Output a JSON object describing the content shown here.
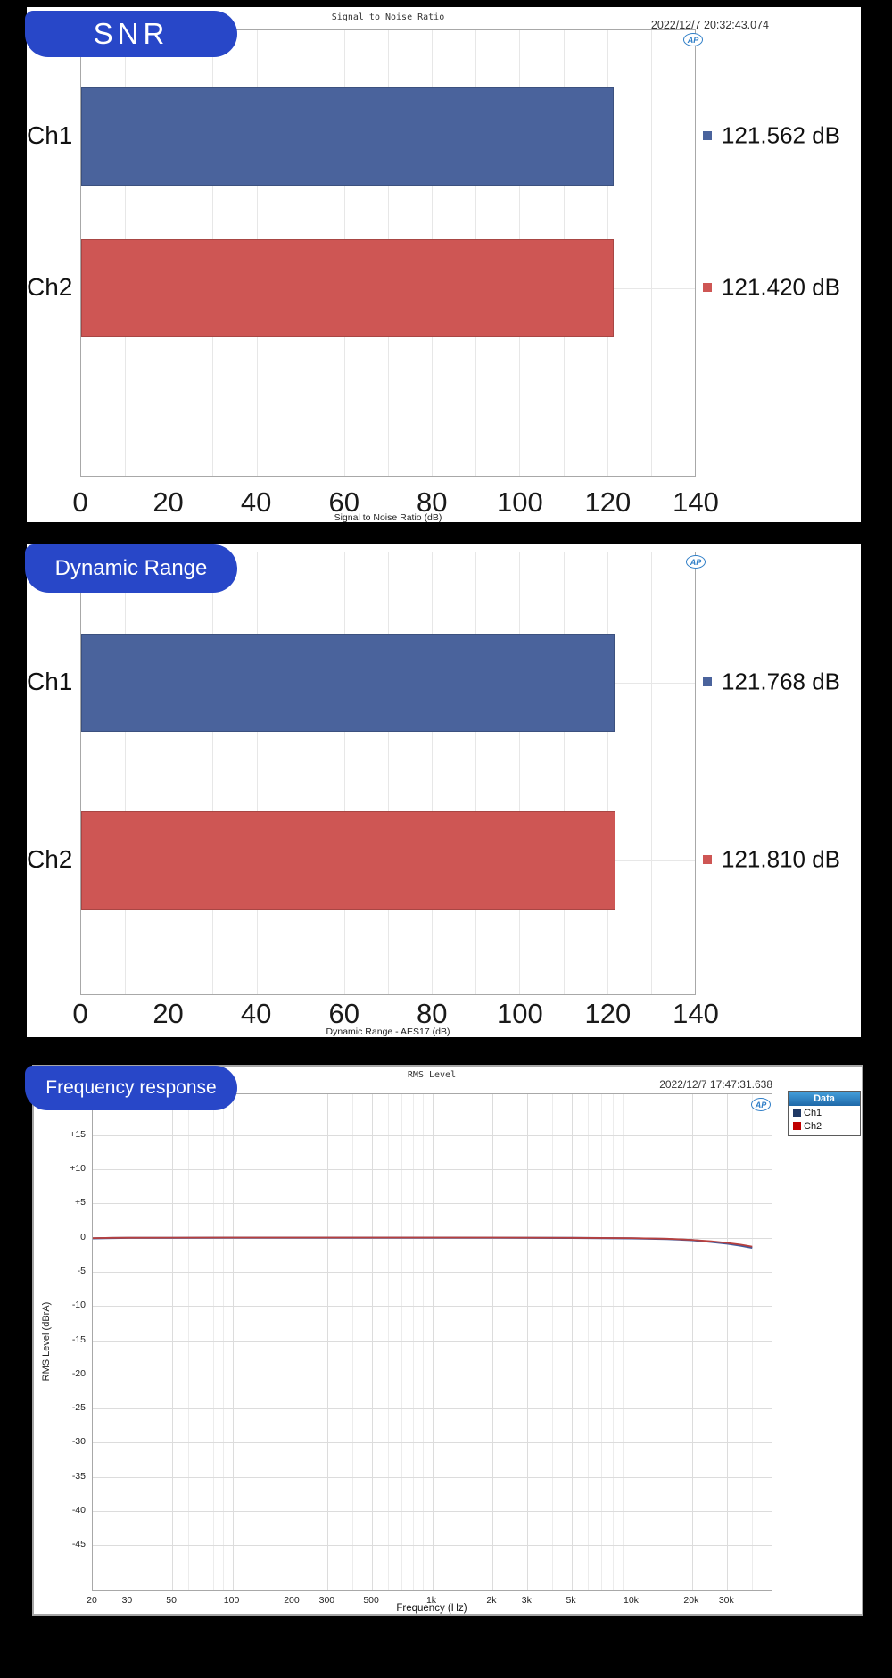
{
  "page": {
    "background": "#000000"
  },
  "colors": {
    "badge_blue": "#2847C8",
    "bar_ch1": "#4A639C",
    "bar_ch2": "#CE5654",
    "line_ch1": "#41599B",
    "line_ch2": "#B8403E",
    "legend_ch1": "#1F3864",
    "legend_ch2": "#C00000",
    "ap_logo_blue": "#2F7EC7",
    "grid_minor": "#ECECEC",
    "grid_major": "#DCDCDC",
    "grid_bar": "#E7E7E7"
  },
  "chart_data": [
    {
      "type": "bar",
      "orientation": "horizontal",
      "badge": "SNR",
      "title": "Signal to Noise Ratio",
      "timestamp": "2022/12/7 20:32:43.074",
      "logo": "AP",
      "xlabel": "Signal to Noise Ratio (dB)",
      "xlim": [
        0,
        140
      ],
      "x_ticks": [
        0,
        20,
        40,
        60,
        80,
        100,
        120,
        140
      ],
      "categories": [
        "Ch1",
        "Ch2"
      ],
      "values": [
        121.562,
        121.42
      ],
      "value_labels": [
        "121.562 dB",
        "121.420 dB"
      ],
      "bar_colors": [
        "#4A639C",
        "#CE5654"
      ],
      "grid": true
    },
    {
      "type": "bar",
      "orientation": "horizontal",
      "badge": "Dynamic Range",
      "title": "",
      "timestamp": "",
      "logo": "AP",
      "xlabel": "Dynamic Range - AES17 (dB)",
      "xlim": [
        0,
        140
      ],
      "x_ticks": [
        0,
        20,
        40,
        60,
        80,
        100,
        120,
        140
      ],
      "categories": [
        "Ch1",
        "Ch2"
      ],
      "values": [
        121.768,
        121.81
      ],
      "value_labels": [
        "121.768 dB",
        "121.810 dB"
      ],
      "bar_colors": [
        "#4A639C",
        "#CE5654"
      ],
      "grid": true
    },
    {
      "type": "line",
      "badge": "Frequency response",
      "title": "RMS Level",
      "timestamp": "2022/12/7 17:47:31.638",
      "logo": "AP",
      "xlabel": "Frequency (Hz)",
      "ylabel": "RMS Level (dBrA)",
      "x_scale": "log",
      "xlim": [
        20,
        50000
      ],
      "ylim": [
        -51.5,
        21
      ],
      "x_ticks": [
        {
          "f": 20,
          "label": "20"
        },
        {
          "f": 30,
          "label": "30"
        },
        {
          "f": 50,
          "label": "50"
        },
        {
          "f": 100,
          "label": "100"
        },
        {
          "f": 200,
          "label": "200"
        },
        {
          "f": 300,
          "label": "300"
        },
        {
          "f": 500,
          "label": "500"
        },
        {
          "f": 1000,
          "label": "1k"
        },
        {
          "f": 2000,
          "label": "2k"
        },
        {
          "f": 3000,
          "label": "3k"
        },
        {
          "f": 5000,
          "label": "5k"
        },
        {
          "f": 10000,
          "label": "10k"
        },
        {
          "f": 20000,
          "label": "20k"
        },
        {
          "f": 30000,
          "label": "30k"
        }
      ],
      "y_ticks": [
        {
          "v": 15,
          "label": "+15"
        },
        {
          "v": 10,
          "label": "+10"
        },
        {
          "v": 5,
          "label": "+5"
        },
        {
          "v": 0,
          "label": "0"
        },
        {
          "v": -5,
          "label": "-5"
        },
        {
          "v": -10,
          "label": "-10"
        },
        {
          "v": -15,
          "label": "-15"
        },
        {
          "v": -20,
          "label": "-20"
        },
        {
          "v": -25,
          "label": "-25"
        },
        {
          "v": -30,
          "label": "-30"
        },
        {
          "v": -35,
          "label": "-35"
        },
        {
          "v": -40,
          "label": "-40"
        },
        {
          "v": -45,
          "label": "-45"
        }
      ],
      "legend": {
        "header": "Data",
        "entries": [
          {
            "label": "Ch1",
            "color": "#1F3864"
          },
          {
            "label": "Ch2",
            "color": "#C00000"
          }
        ]
      },
      "series": [
        {
          "name": "Ch1",
          "color": "#41599B",
          "points": [
            [
              20,
              -0.08
            ],
            [
              25,
              -0.03
            ],
            [
              30,
              -0.01
            ],
            [
              50,
              0
            ],
            [
              100,
              0.02
            ],
            [
              200,
              0.02
            ],
            [
              500,
              0.02
            ],
            [
              1000,
              0.02
            ],
            [
              2000,
              0.01
            ],
            [
              5000,
              -0.02
            ],
            [
              10000,
              -0.08
            ],
            [
              15000,
              -0.18
            ],
            [
              20000,
              -0.35
            ],
            [
              25000,
              -0.6
            ],
            [
              30000,
              -0.85
            ],
            [
              35000,
              -1.15
            ],
            [
              40000,
              -1.45
            ]
          ]
        },
        {
          "name": "Ch2",
          "color": "#B8403E",
          "points": [
            [
              20,
              -0.05
            ],
            [
              25,
              -0.01
            ],
            [
              30,
              0.01
            ],
            [
              50,
              0.02
            ],
            [
              100,
              0.04
            ],
            [
              200,
              0.04
            ],
            [
              500,
              0.04
            ],
            [
              1000,
              0.04
            ],
            [
              2000,
              0.03
            ],
            [
              5000,
              0
            ],
            [
              10000,
              -0.05
            ],
            [
              15000,
              -0.14
            ],
            [
              20000,
              -0.3
            ],
            [
              25000,
              -0.52
            ],
            [
              30000,
              -0.75
            ],
            [
              35000,
              -1.0
            ],
            [
              40000,
              -1.28
            ]
          ]
        }
      ]
    }
  ]
}
